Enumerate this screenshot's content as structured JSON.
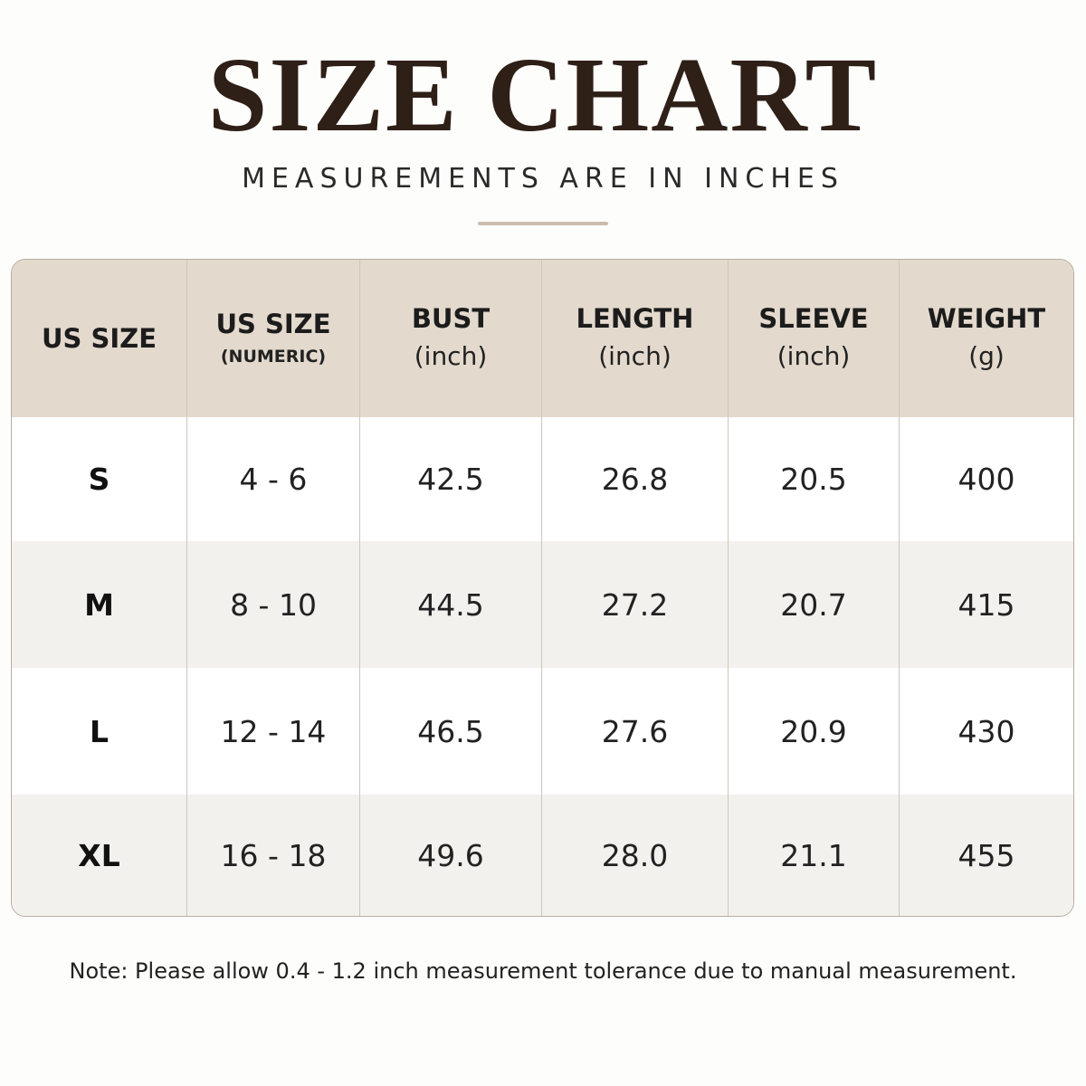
{
  "header": {
    "title": "SIZE CHART",
    "subtitle": "MEASUREMENTS ARE IN INCHES"
  },
  "table": {
    "columns": [
      {
        "title": "US SIZE"
      },
      {
        "title": "US SIZE",
        "subtitle": "(NUMERIC)"
      },
      {
        "title": "BUST",
        "subtitle": "(inch)"
      },
      {
        "title": "LENGTH",
        "subtitle": "(inch)"
      },
      {
        "title": "SLEEVE",
        "subtitle": "(inch)"
      },
      {
        "title": "WEIGHT",
        "subtitle": "(g)"
      }
    ],
    "rows": [
      [
        "S",
        "4 - 6",
        "42.5",
        "26.8",
        "20.5",
        "400"
      ],
      [
        "M",
        "8 - 10",
        "44.5",
        "27.2",
        "20.7",
        "415"
      ],
      [
        "L",
        "12 - 14",
        "46.5",
        "27.6",
        "20.9",
        "430"
      ],
      [
        "XL",
        "16 - 18",
        "49.6",
        "28.0",
        "21.1",
        "455"
      ]
    ]
  },
  "note": "Note: Please allow 0.4 - 1.2 inch measurement tolerance due to manual measurement."
}
